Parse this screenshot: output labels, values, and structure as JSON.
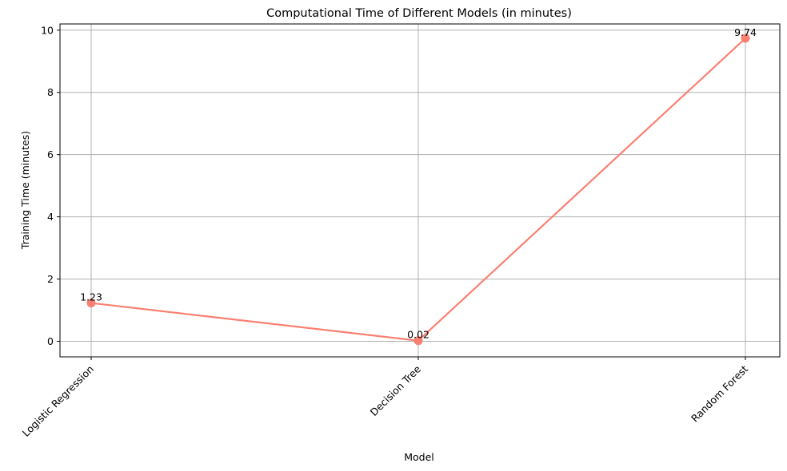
{
  "chart_data": {
    "type": "line",
    "title": "Computational Time of Different Models (in minutes)",
    "xlabel": "Model",
    "ylabel": "Training Time (minutes)",
    "categories": [
      "Logistic Regression",
      "Decision Tree",
      "Random Forest"
    ],
    "series": [
      {
        "values": [
          1.23,
          0.02,
          9.74
        ],
        "color": "#fa8072",
        "marker": "circle"
      }
    ],
    "data_labels": [
      "1.23",
      "0.02",
      "9.74"
    ],
    "ylim": [
      -0.5,
      10.2
    ],
    "yticks": [
      0,
      2,
      4,
      6,
      8,
      10
    ],
    "ytick_labels": [
      "0",
      "2",
      "4",
      "6",
      "8",
      "10"
    ],
    "grid": true,
    "legend": null
  }
}
